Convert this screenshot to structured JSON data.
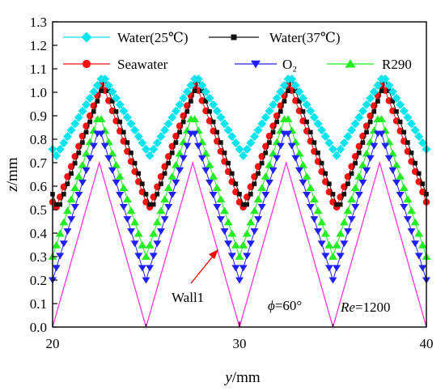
{
  "chart_data": {
    "type": "line",
    "xlabel": "y/mm",
    "ylabel": "z/mm",
    "xlim": [
      20,
      40
    ],
    "ylim": [
      0,
      1.3
    ],
    "xticks": [
      "20",
      "30",
      "40"
    ],
    "xminorticks": [
      25,
      35
    ],
    "yticks": [
      "0.0",
      "0.1",
      "0.2",
      "0.3",
      "0.4",
      "0.5",
      "0.6",
      "0.7",
      "0.8",
      "0.9",
      "1.0",
      "1.1",
      "1.2",
      "1.3"
    ],
    "grid": false,
    "legend": "top",
    "series": [
      {
        "name": "Water(25℃)",
        "color": "#00e5ee",
        "marker": "diamond",
        "wave": {
          "min": 0.73,
          "max": 1.07,
          "phase": 22.7,
          "period": 5
        }
      },
      {
        "name": "Water(37℃)",
        "color": "#111111",
        "marker": "square",
        "wave": {
          "min": 0.5,
          "max": 1.05,
          "phase": 22.8,
          "period": 5
        }
      },
      {
        "name": "Seawater",
        "color": "#ff1010",
        "marker": "circle",
        "wave": {
          "min": 0.5,
          "max": 1.04,
          "phase": 22.65,
          "period": 5
        }
      },
      {
        "name": "O₂",
        "color": "#2020ff",
        "marker": "triangle-down",
        "wave": {
          "min": 0.2,
          "max": 0.85,
          "phase": 22.5,
          "period": 5
        }
      },
      {
        "name": "R290",
        "color": "#22ee22",
        "marker": "triangle-up",
        "wave": {
          "min": 0.3,
          "max": 0.91,
          "phase": 22.5,
          "period": 5
        }
      }
    ],
    "wall": {
      "name": "Wall1",
      "color": "#ff33dd",
      "x": [
        20,
        22.5,
        25,
        27.5,
        30,
        32.5,
        35,
        37.5,
        40
      ],
      "y": [
        0,
        0.7,
        0,
        0.7,
        0,
        0.7,
        0,
        0.7,
        0
      ]
    },
    "annotations": [
      {
        "text": "Wall1"
      },
      {
        "text": "ϕ=60°"
      },
      {
        "text": "Re=1200"
      }
    ]
  }
}
